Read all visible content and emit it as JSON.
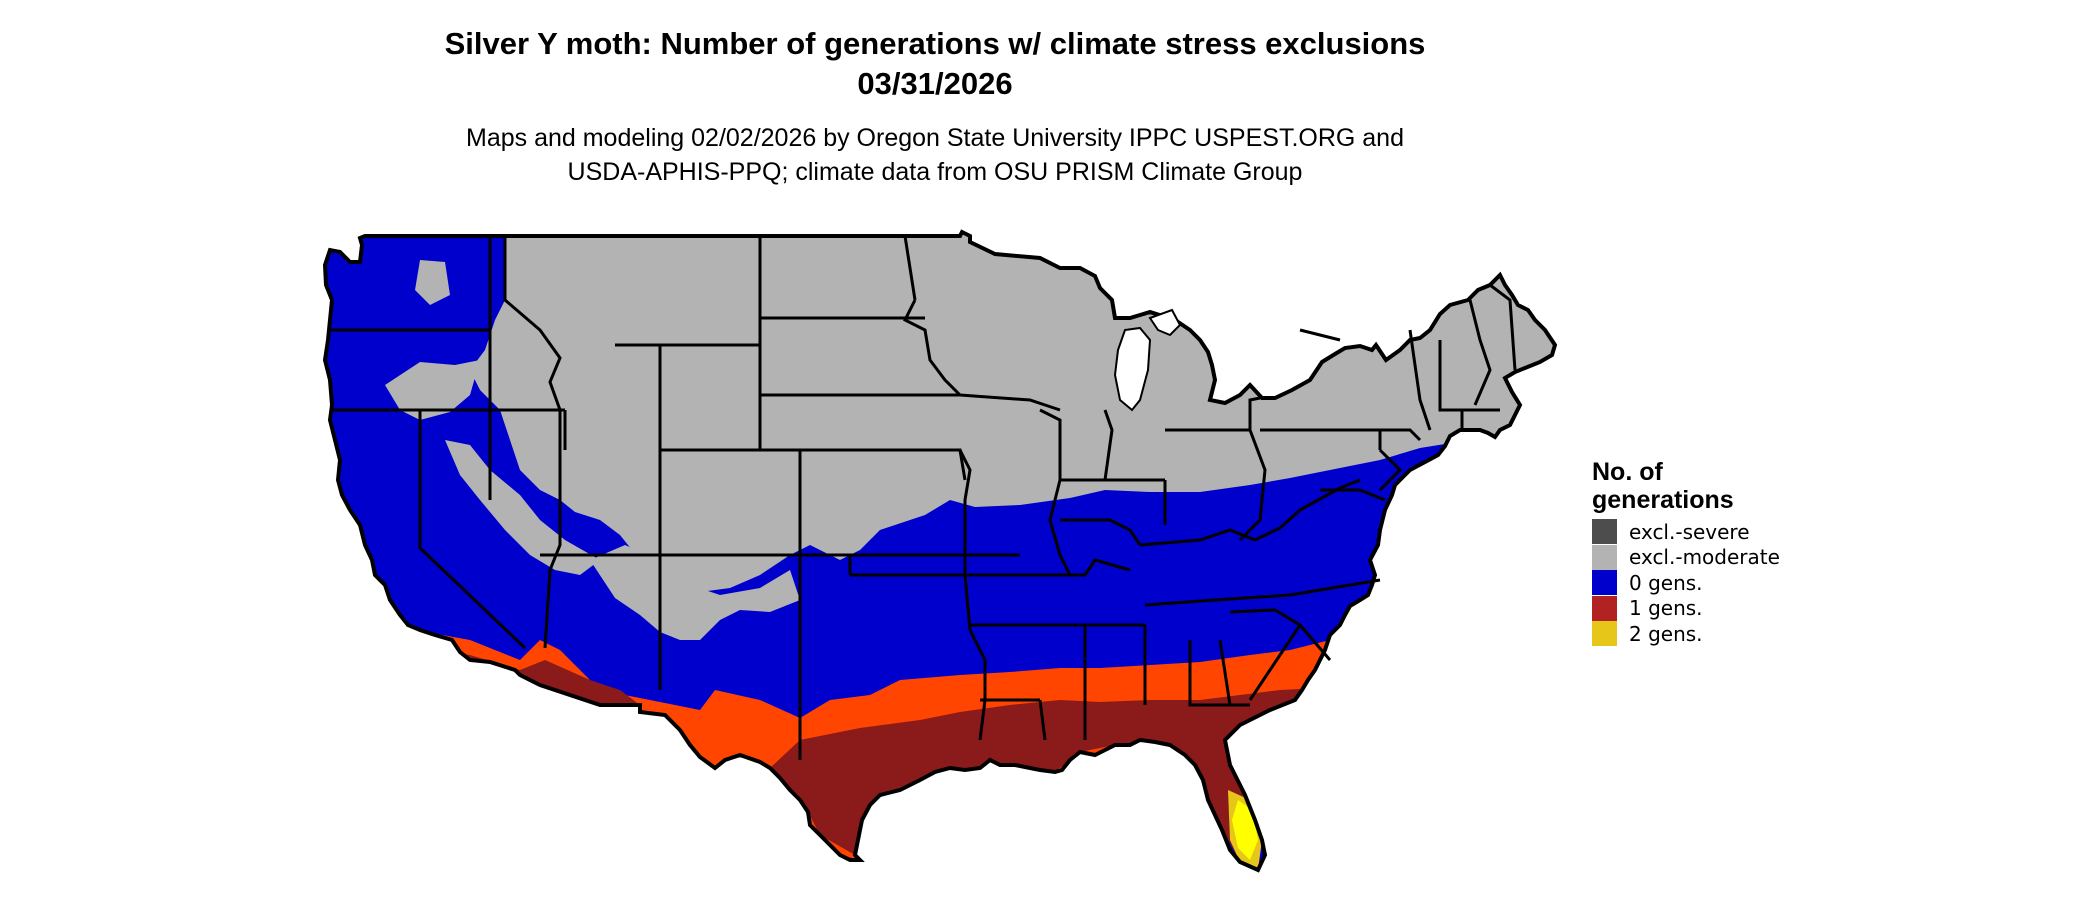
{
  "title_line1": "Silver Y moth: Number of generations w/ climate stress exclusions",
  "title_line2": "03/31/2026",
  "subtitle_line1": "Maps and modeling 02/02/2026 by Oregon State University IPPC USPEST.ORG and",
  "subtitle_line2": "USDA-APHIS-PPQ; climate data from OSU PRISM Climate Group",
  "colors": {
    "excl_severe": "#4d4d4d",
    "excl_moderate": "#b3b3b3",
    "gens0": "#0000cd",
    "gens1": "#8b1a1a",
    "gens1_light": "#ff4500",
    "gens2": "#e6c619",
    "gens2_bright": "#ffff00",
    "border": "#000000"
  },
  "legend": {
    "title_line1": "No. of",
    "title_line2": "generations",
    "items": [
      {
        "label": "excl.-severe",
        "color": "#4d4d4d"
      },
      {
        "label": "excl.-moderate",
        "color": "#b3b3b3"
      },
      {
        "label": "0 gens.",
        "color": "#0000cd"
      },
      {
        "label": "1 gens.",
        "color": "#b22222"
      },
      {
        "label": "2 gens.",
        "color": "#e6c619"
      }
    ]
  }
}
